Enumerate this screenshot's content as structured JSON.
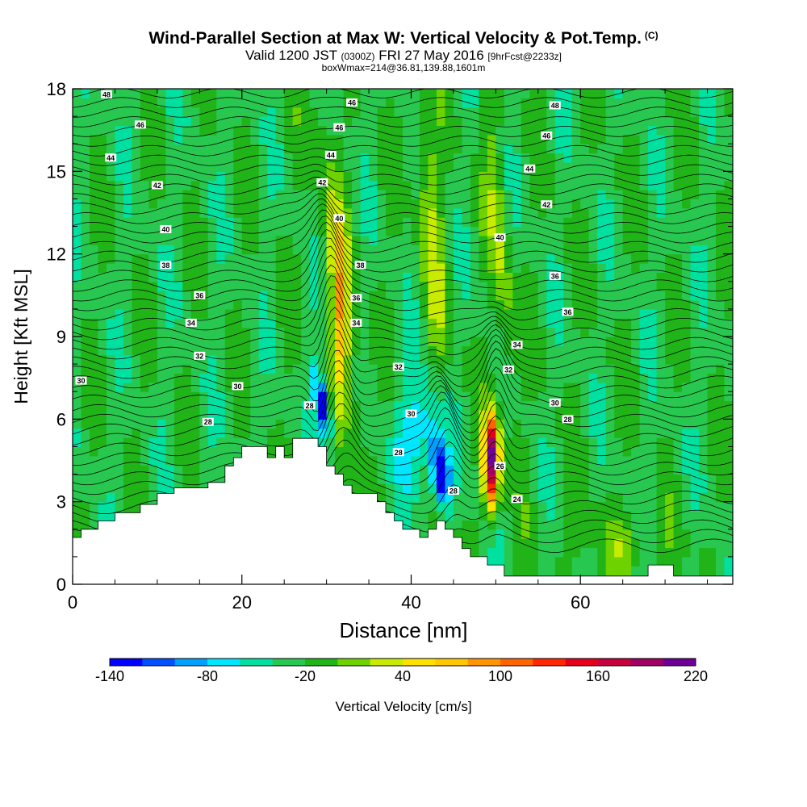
{
  "title": {
    "main": "Wind-Parallel Section at Max W: Vertical Velocity & Pot.Temp.",
    "copyright": "(C)",
    "valid_prefix": "Valid 1200 JST",
    "valid_utc": "(0300Z)",
    "valid_date": "FRI 27 May 2016",
    "forecast": "[9hrFcst@2233z]",
    "box_info": "boxWmax=214@36.81,139.88,1601m"
  },
  "chart_data": {
    "type": "heatmap",
    "xlabel": "Distance [nm]",
    "ylabel": "Height [Kft MSL]",
    "xlim": [
      0,
      78
    ],
    "ylim": [
      0,
      18
    ],
    "x_ticks": [
      "0",
      "20",
      "40",
      "60"
    ],
    "y_ticks": [
      "0",
      "3",
      "6",
      "9",
      "12",
      "15",
      "18"
    ],
    "colorbar": {
      "label": "Vertical Velocity [cm/s]",
      "tick_labels": [
        "-140",
        "-80",
        "-20",
        "40",
        "100",
        "160",
        "220"
      ],
      "colors": [
        "#0000ff",
        "#0050ff",
        "#00a0ff",
        "#00e6ff",
        "#00e0a0",
        "#28c850",
        "#20b418",
        "#6ed200",
        "#c8eb00",
        "#ffe100",
        "#ffc800",
        "#ff9600",
        "#ff6400",
        "#ff2800",
        "#e6001e",
        "#c8003c",
        "#a00064",
        "#6e0096"
      ],
      "boundaries": [
        -140,
        -120,
        -100,
        -80,
        -60,
        -40,
        -20,
        0,
        20,
        40,
        60,
        80,
        100,
        120,
        140,
        160,
        180,
        200,
        220
      ]
    },
    "contour_field": "Potential Temperature",
    "contour_labels": [
      {
        "value": "48",
        "x": 4,
        "y": 17.8
      },
      {
        "value": "46",
        "x": 8,
        "y": 16.7
      },
      {
        "value": "44",
        "x": 4.5,
        "y": 15.5
      },
      {
        "value": "42",
        "x": 10,
        "y": 14.5
      },
      {
        "value": "40",
        "x": 11,
        "y": 12.9
      },
      {
        "value": "38",
        "x": 11,
        "y": 11.6
      },
      {
        "value": "36",
        "x": 15,
        "y": 10.5
      },
      {
        "value": "34",
        "x": 14,
        "y": 9.5
      },
      {
        "value": "32",
        "x": 15,
        "y": 8.3
      },
      {
        "value": "30",
        "x": 1,
        "y": 7.4
      },
      {
        "value": "30",
        "x": 19.5,
        "y": 7.2
      },
      {
        "value": "28",
        "x": 16,
        "y": 5.9
      },
      {
        "value": "28",
        "x": 28,
        "y": 6.5
      },
      {
        "value": "46",
        "x": 33,
        "y": 17.5
      },
      {
        "value": "46",
        "x": 31.5,
        "y": 16.6
      },
      {
        "value": "44",
        "x": 30.5,
        "y": 15.6
      },
      {
        "value": "42",
        "x": 29.5,
        "y": 14.6
      },
      {
        "value": "40",
        "x": 31.5,
        "y": 13.3
      },
      {
        "value": "38",
        "x": 34,
        "y": 11.6
      },
      {
        "value": "36",
        "x": 33.5,
        "y": 10.4
      },
      {
        "value": "34",
        "x": 33.5,
        "y": 9.5
      },
      {
        "value": "32",
        "x": 38.5,
        "y": 7.9
      },
      {
        "value": "30",
        "x": 40,
        "y": 6.2
      },
      {
        "value": "28",
        "x": 38.5,
        "y": 4.8
      },
      {
        "value": "28",
        "x": 45,
        "y": 3.4
      },
      {
        "value": "26",
        "x": 50.5,
        "y": 4.3
      },
      {
        "value": "24",
        "x": 52.5,
        "y": 3.1
      },
      {
        "value": "48",
        "x": 57,
        "y": 17.4
      },
      {
        "value": "46",
        "x": 56,
        "y": 16.3
      },
      {
        "value": "44",
        "x": 54,
        "y": 15.1
      },
      {
        "value": "42",
        "x": 56,
        "y": 13.8
      },
      {
        "value": "40",
        "x": 50.5,
        "y": 12.6
      },
      {
        "value": "36",
        "x": 57,
        "y": 11.2
      },
      {
        "value": "36",
        "x": 58.5,
        "y": 9.9
      },
      {
        "value": "34",
        "x": 52.5,
        "y": 8.7
      },
      {
        "value": "32",
        "x": 51.5,
        "y": 7.8
      },
      {
        "value": "30",
        "x": 57,
        "y": 6.6
      },
      {
        "value": "28",
        "x": 58.5,
        "y": 6.0
      }
    ]
  }
}
